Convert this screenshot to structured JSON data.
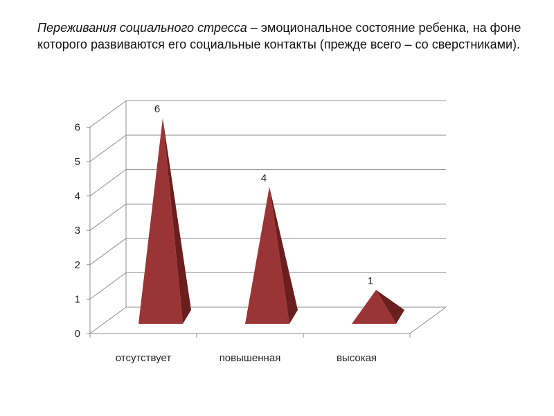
{
  "heading": {
    "term": "Переживания социального стресса",
    "definition": " – эмоциональное состояние ребенка, на фоне которого развиваются его социальные контакты (прежде всего – со сверстниками)."
  },
  "colors": {
    "pyramid_front": "#9b3535",
    "pyramid_side": "#6a1e1e",
    "grid": "#8c8c8c"
  },
  "chart_data": {
    "type": "bar",
    "bar_shape": "3d-pyramid",
    "categories": [
      "отсутствует",
      "повышенная",
      "высокая"
    ],
    "values": [
      6,
      4,
      1
    ],
    "data_labels": [
      "6",
      "4",
      "1"
    ],
    "y_ticks": [
      "0",
      "1",
      "2",
      "3",
      "4",
      "5",
      "6"
    ],
    "ylim": [
      0,
      6
    ],
    "grid": true,
    "legend": "none"
  }
}
